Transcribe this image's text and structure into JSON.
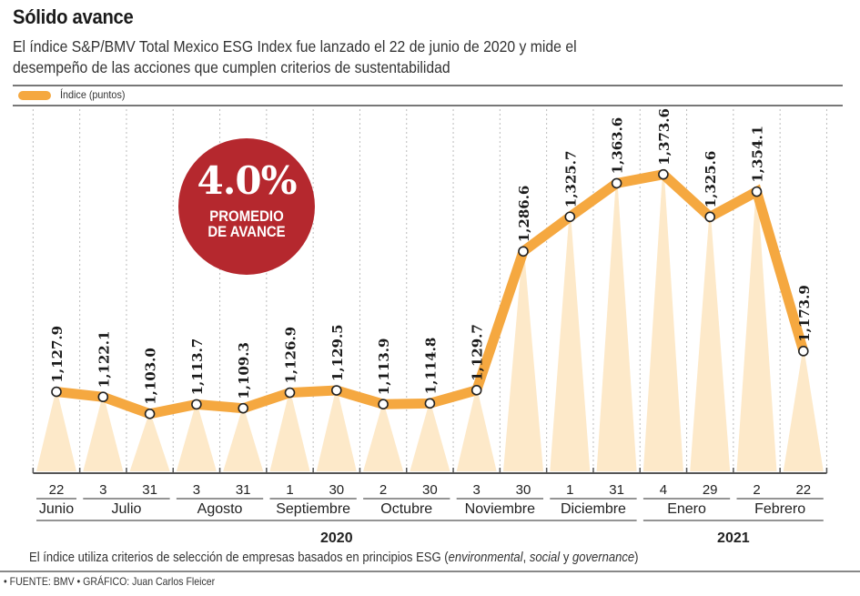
{
  "header": {
    "title": "Sólido avance",
    "subtitle": "El índice S&P/BMV Total Mexico ESG Index fue lanzado el 22 de junio de 2020 y mide el desempeño de las acciones que cumplen criterios de sustentabilidad"
  },
  "legend": {
    "label": "Índice (puntos)",
    "color": "#f5a840"
  },
  "badge": {
    "value": "4.0%",
    "line1": "PROMEDIO",
    "line2": "DE AVANCE",
    "color": "#b5282e"
  },
  "note": {
    "prefix": "El índice utiliza criterios de selección de empresas basados en principios ESG (",
    "env": "environmental",
    "comma": ", ",
    "social": "social",
    "y": " y ",
    "gov": "governance",
    "suffix": ")"
  },
  "credits": "• FUENTE: BMV • GRÁFICO: Juan Carlos Fleicer",
  "chart_data": {
    "type": "line",
    "title": "Sólido avance",
    "ylabel": "Índice (puntos)",
    "xlabel": "",
    "ylim": [
      1038,
      1400
    ],
    "grid": true,
    "legend": "top-left",
    "x": [
      "22",
      "3",
      "31",
      "3",
      "31",
      "1",
      "30",
      "2",
      "30",
      "3",
      "30",
      "1",
      "31",
      "4",
      "29",
      "2",
      "22"
    ],
    "series": [
      {
        "name": "Índice (puntos)",
        "values": [
          1127.9,
          1122.1,
          1103.0,
          1113.7,
          1109.3,
          1126.9,
          1129.5,
          1113.9,
          1114.8,
          1129.7,
          1286.6,
          1325.7,
          1363.6,
          1373.6,
          1325.6,
          1354.1,
          1173.9
        ],
        "labels": [
          "1,127.9",
          "1,122.1",
          "1,103.0",
          "1,113.7",
          "1,109.3",
          "1,126.9",
          "1,129.5",
          "1,113.9",
          "1,114.8",
          "1,129.7",
          "1,286.6",
          "1,325.7",
          "1,363.6",
          "1,373.6",
          "1,325.6",
          "1,354.1",
          "1,173.9"
        ]
      }
    ],
    "months": [
      {
        "name": "Junio",
        "from": 0,
        "to": 0
      },
      {
        "name": "Julio",
        "from": 1,
        "to": 2
      },
      {
        "name": "Agosto",
        "from": 3,
        "to": 4
      },
      {
        "name": "Septiembre",
        "from": 5,
        "to": 6
      },
      {
        "name": "Octubre",
        "from": 7,
        "to": 8
      },
      {
        "name": "Noviembre",
        "from": 9,
        "to": 10
      },
      {
        "name": "Diciembre",
        "from": 11,
        "to": 12
      },
      {
        "name": "Enero",
        "from": 13,
        "to": 14
      },
      {
        "name": "Febrero",
        "from": 15,
        "to": 16
      }
    ],
    "years": [
      {
        "name": "2020",
        "from": 0,
        "to": 12
      },
      {
        "name": "2021",
        "from": 13,
        "to": 16
      }
    ]
  }
}
